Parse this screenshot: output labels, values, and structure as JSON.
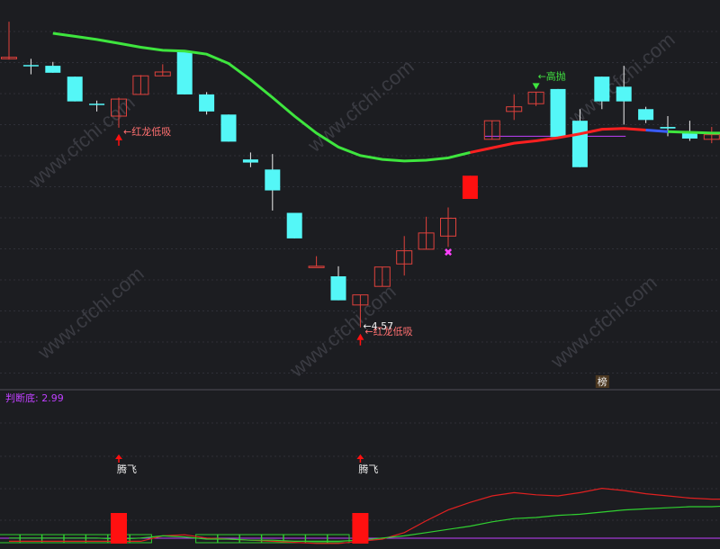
{
  "colors": {
    "background": "#1c1d21",
    "grid": "#2f3038",
    "up_candle": "#e0413c",
    "down_candle": "#54f7f7",
    "ma_green": "#3ee53e",
    "ma_red": "#ff2020",
    "ma_blue": "#3a5cff",
    "purple": "#c040ff",
    "magenta": "#ff40ff",
    "white": "#f0f0f0",
    "signal_bar": "#ff1010",
    "indicator_red": "#e02020",
    "indicator_green": "#30d030",
    "label_red": "#ff7070",
    "label_green": "#40e040",
    "divider": "#505057"
  },
  "watermark": "www.cfchi.com",
  "chart_data": [
    {
      "type": "candlestick",
      "title": "",
      "candles": [
        {
          "o": 102.4,
          "c": 102.6,
          "h": 107.2,
          "l": 102.3
        },
        {
          "o": 101.6,
          "c": 101.5,
          "h": 102.4,
          "l": 100.4
        },
        {
          "o": 101.5,
          "c": 100.6,
          "h": 102.0,
          "l": 100.6
        },
        {
          "o": 100.1,
          "c": 96.9,
          "h": 100.1,
          "l": 96.9
        },
        {
          "o": 96.6,
          "c": 96.5,
          "h": 97.0,
          "l": 95.6
        },
        {
          "o": 95.0,
          "c": 97.2,
          "h": 97.4,
          "l": 93.5
        },
        {
          "o": 97.8,
          "c": 100.2,
          "h": 100.3,
          "l": 97.8
        },
        {
          "o": 100.2,
          "c": 100.7,
          "h": 101.7,
          "l": 100.2
        },
        {
          "o": 103.4,
          "c": 97.8,
          "h": 103.4,
          "l": 97.8
        },
        {
          "o": 97.8,
          "c": 95.6,
          "h": 98.1,
          "l": 95.2
        },
        {
          "o": 95.2,
          "c": 91.7,
          "h": 95.2,
          "l": 91.7
        },
        {
          "o": 89.4,
          "c": 89.0,
          "h": 90.3,
          "l": 88.4
        },
        {
          "o": 88.1,
          "c": 85.4,
          "h": 90.1,
          "l": 82.8
        },
        {
          "o": 82.5,
          "c": 79.2,
          "h": 82.5,
          "l": 79.2
        },
        {
          "o": 75.6,
          "c": 75.6,
          "h": 76.9,
          "l": 75.6
        },
        {
          "o": 74.3,
          "c": 71.2,
          "h": 75.6,
          "l": 71.2
        },
        {
          "o": 70.6,
          "c": 71.9,
          "h": 71.9,
          "l": 67.7
        },
        {
          "o": 73.0,
          "c": 75.5,
          "h": 75.5,
          "l": 73.0
        },
        {
          "o": 75.9,
          "c": 77.6,
          "h": 79.5,
          "l": 74.4
        },
        {
          "o": 77.8,
          "c": 79.9,
          "h": 82.0,
          "l": 77.8
        },
        {
          "o": 79.5,
          "c": 81.8,
          "h": 83.2,
          "l": 78.1
        },
        {
          "o": 84.3,
          "c": 87.3,
          "h": 87.3,
          "l": 84.3
        },
        {
          "o": 92.0,
          "c": 94.4,
          "h": 94.4,
          "l": 92.0
        },
        {
          "o": 95.6,
          "c": 96.2,
          "h": 97.8,
          "l": 94.5
        },
        {
          "o": 96.6,
          "c": 98.1,
          "h": 98.1,
          "l": 96.3
        },
        {
          "o": 98.5,
          "c": 92.3,
          "h": 98.5,
          "l": 92.3
        },
        {
          "o": 94.4,
          "c": 88.4,
          "h": 95.9,
          "l": 88.4
        },
        {
          "o": 100.1,
          "c": 96.9,
          "h": 100.1,
          "l": 95.9
        },
        {
          "o": 98.8,
          "c": 96.9,
          "h": 101.5,
          "l": 93.9
        },
        {
          "o": 95.9,
          "c": 94.5,
          "h": 96.2,
          "l": 94.1
        },
        {
          "o": 93.6,
          "c": 93.4,
          "h": 95.0,
          "l": 92.4
        },
        {
          "o": 92.9,
          "c": 92.1,
          "h": 94.4,
          "l": 91.8
        },
        {
          "o": 92.0,
          "c": 92.6,
          "h": 93.6,
          "l": 91.5
        },
        {
          "o": 92.3,
          "c": 92.9,
          "h": 93.6,
          "l": 92.0
        }
      ],
      "ma_line": [
        null,
        null,
        105.7,
        105.3,
        104.9,
        104.4,
        103.9,
        103.5,
        103.4,
        103.0,
        101.8,
        99.7,
        97.4,
        95.0,
        92.8,
        91.0,
        89.9,
        89.4,
        89.2,
        89.3,
        89.6,
        90.3,
        90.9,
        91.5,
        91.8,
        92.2,
        92.7,
        93.3,
        93.4,
        93.2,
        93.0,
        92.9,
        92.8,
        92.8
      ],
      "ma_red_from": 21,
      "ref_line_value": 92.4,
      "ylim": [
        60,
        110
      ],
      "annotations": [
        {
          "index": 5,
          "text": "红龙低吸",
          "arrow": "up",
          "color": "label_red"
        },
        {
          "index": 16,
          "text": "红龙低吸",
          "arrow": "up",
          "color": "label_red"
        },
        {
          "index": 16,
          "text": "4.57",
          "arrow": "pointer",
          "color": "white"
        },
        {
          "index": 24,
          "text": "高抛",
          "arrow": "down",
          "color": "label_green"
        },
        {
          "index": 20,
          "text": "✖",
          "arrow": "none",
          "color": "magenta"
        },
        {
          "index": 27,
          "text": "榜",
          "arrow": "none",
          "color": "white"
        }
      ]
    },
    {
      "type": "line",
      "title": "判断底: 2.99",
      "ylim": [
        0,
        100
      ],
      "series": [
        {
          "key": "red",
          "values": [
            3,
            3,
            3,
            3,
            3,
            3,
            3,
            8,
            9,
            6,
            5,
            4,
            3,
            2,
            1,
            1,
            3,
            5,
            11,
            22,
            32,
            39,
            45,
            48,
            46,
            45,
            48,
            52,
            50,
            47,
            45,
            43,
            42,
            42
          ]
        },
        {
          "key": "green",
          "values": [
            6,
            6,
            6,
            6,
            6,
            5,
            6,
            8,
            7,
            5,
            5,
            4,
            4,
            3,
            3,
            3,
            4,
            6,
            8,
            11,
            14,
            17,
            21,
            24,
            25,
            27,
            28,
            30,
            32,
            33,
            34,
            35,
            35,
            36
          ]
        }
      ],
      "signals": [
        {
          "index": 5,
          "label": "腾飞"
        },
        {
          "index": 16,
          "label": "腾飞"
        }
      ],
      "low_boxes_ranges": [
        [
          0,
          6
        ],
        [
          9,
          15
        ]
      ]
    }
  ]
}
